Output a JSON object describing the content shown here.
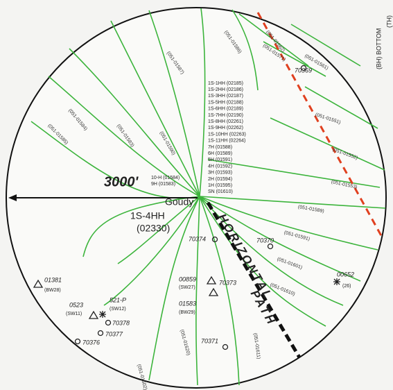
{
  "edge_label": "(BH) BOTTOM",
  "edge_label2": "(TH)",
  "distance": "3000'",
  "center_well": {
    "name": "Goudy",
    "id": "1S-4HH",
    "number": "(02330)"
  },
  "path_label": [
    "HORIZONTAL",
    "PATH"
  ],
  "well_list": [
    "1S-1HH (02185)",
    "1S-2HH (02186)",
    "1S-3HH (02187)",
    "1S-5HH (02188)",
    "1S-6HH (02189)",
    "1S-7HH (02190)",
    "1S-8HH (02261)",
    "1S-9HH (02262)",
    "1S-10HH (02263)",
    "1S-11HH (02264)",
    "7H (01588)",
    "6H (01589)",
    "5H (01591)",
    "4H (01592)",
    "3H (01593)",
    "2H (01594)",
    "1H (01595)",
    "SN (01610)",
    "10-H (01584)",
    "9H (01583)"
  ],
  "lease_lines": [
    "(051-01587)",
    "(051-01586)",
    "(051-01585)",
    "(051-01584)",
    "(051-01583)",
    "(051-01590)",
    "(051-01562)",
    "(051-01571)",
    "(051-01561)",
    "(051-01551)",
    "(051-01552)",
    "(051-01553)",
    "(051-01589)",
    "(051-01591)",
    "(051-01601)",
    "(051-01610)",
    "(051-01620)",
    "(051-01602)",
    "(051-01611)"
  ],
  "wells": [
    {
      "id": "70369"
    },
    {
      "id": "70374"
    },
    {
      "id": "70370"
    },
    {
      "id": "00859",
      "sub": "(SW27)"
    },
    {
      "id": "70373"
    },
    {
      "id": "01583",
      "sub": "(BW29)"
    },
    {
      "id": "70371"
    },
    {
      "id": "01381",
      "sub": "(BW28)"
    },
    {
      "id": "0523",
      "sub": "(SW11)"
    },
    {
      "id": "521-P",
      "sub": "(SW12)"
    },
    {
      "id": "70378"
    },
    {
      "id": "70377"
    },
    {
      "id": "70376"
    },
    {
      "id": "00652",
      "sub": "(26)"
    }
  ]
}
